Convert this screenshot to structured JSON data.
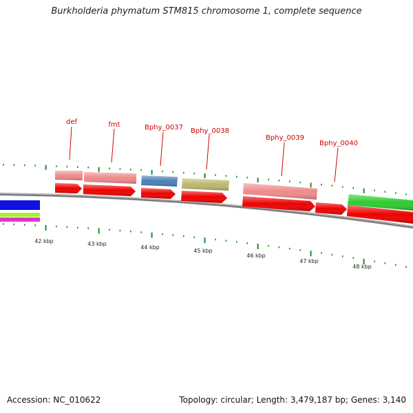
{
  "title": "Burkholderia phymatum STM815 chromosome 1, complete sequence",
  "footer": {
    "accession": "Accession: NC_010622",
    "summary": "Topology: circular; Length: 3,479,187 bp; Genes: 3,140"
  },
  "colors": {
    "backbone": "#7a7a7a",
    "tick": "#1e8a1e",
    "label_red": "#cc0000",
    "cds_red": "#ee0000",
    "gene_pink": "#ef8a8a",
    "gene_blue": "#4a7fb8",
    "gene_olive": "#bdb76b",
    "gene_green": "#2ecc2e",
    "left_blue": "#1010e0",
    "left_lime": "#a8ee33",
    "left_magenta": "#e033cc"
  },
  "scale_labels": [
    "42 kbp",
    "43 kbp",
    "44 kbp",
    "45 kbp",
    "46 kbp",
    "47 kbp",
    "48 kbp"
  ],
  "gene_labels": [
    "def",
    "fmt",
    "Bphy_0037",
    "Bphy_0038",
    "Bphy_0039",
    "Bphy_0040"
  ]
}
